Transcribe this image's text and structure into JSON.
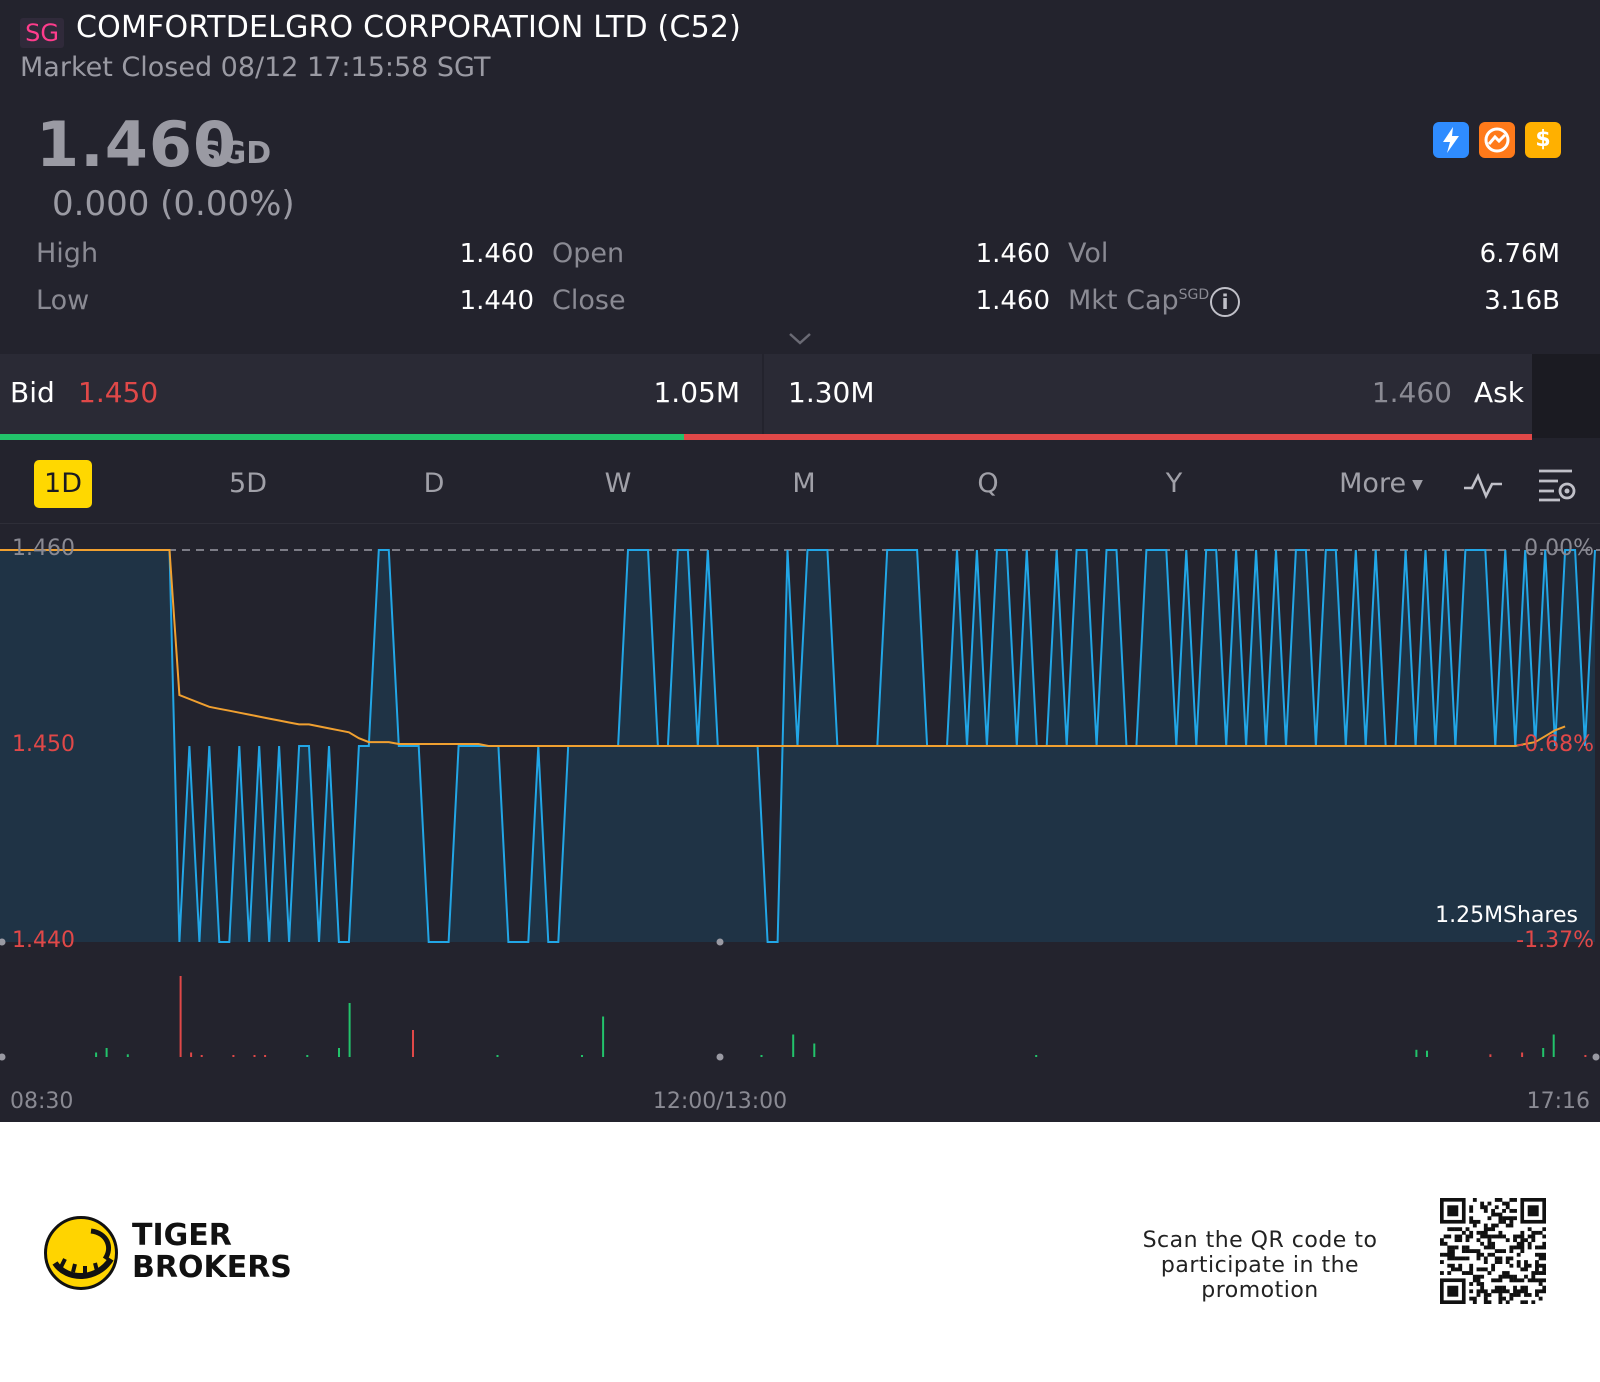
{
  "header": {
    "market_tag": "SG",
    "title": "COMFORTDELGRO CORPORATION LTD (C52)",
    "status": "Market Closed 08/12 17:15:58 SGT"
  },
  "quote": {
    "price": "1.460",
    "currency": "SGD",
    "change": "0.000 (0.00%)",
    "badges": [
      {
        "name": "lightning-icon",
        "color": "#2f8cff"
      },
      {
        "name": "option-chain-icon",
        "color": "#ff7a1a"
      },
      {
        "name": "dollar-icon",
        "color": "#ffb000",
        "glyph": "$"
      }
    ]
  },
  "stats": {
    "high_label": "High",
    "high_value": "1.460",
    "low_label": "Low",
    "low_value": "1.440",
    "open_label": "Open",
    "open_value": "1.460",
    "close_label": "Close",
    "close_value": "1.460",
    "vol_label": "Vol",
    "vol_value": "6.76M",
    "mktcap_label": "Mkt Cap",
    "mktcap_unit": "SGD",
    "mktcap_value": "3.16B"
  },
  "orderbook": {
    "bid_label": "Bid",
    "bid_price": "1.450",
    "bid_size": "1.05M",
    "ask_size": "1.30M",
    "ask_price": "1.460",
    "ask_label": "Ask",
    "bid_ratio": 0.4465
  },
  "tabs": [
    {
      "label": "1D",
      "active": true
    },
    {
      "label": "5D"
    },
    {
      "label": "D"
    },
    {
      "label": "W"
    },
    {
      "label": "M"
    },
    {
      "label": "Q"
    },
    {
      "label": "Y"
    },
    {
      "label": "More"
    }
  ],
  "chart_data": {
    "type": "line",
    "title": "",
    "y_ticks_left": [
      "1.460",
      "1.450",
      "1.440"
    ],
    "y_ticks_right": [
      "0.00%",
      "-0.68%",
      "-1.37%"
    ],
    "x_ticks": [
      "08:30",
      "12:00/13:00",
      "17:16"
    ],
    "ylim": [
      1.44,
      1.46
    ],
    "prev_close": 1.46,
    "volume_label": "1.25MShares",
    "colors": {
      "price": "#22a6e6",
      "avg": "#f0a030",
      "up": "#22c36a",
      "down": "#e04848"
    },
    "series": [
      {
        "values": [
          1.46,
          1.46,
          1.46,
          1.46,
          1.46,
          1.46,
          1.46,
          1.46,
          1.46,
          1.46,
          1.46,
          1.46,
          1.46,
          1.46,
          1.46,
          1.46,
          1.46,
          1.46,
          1.44,
          1.45,
          1.44,
          1.45,
          1.44,
          1.44,
          1.45,
          1.44,
          1.45,
          1.44,
          1.45,
          1.44,
          1.45,
          1.45,
          1.44,
          1.45,
          1.44,
          1.44,
          1.45,
          1.45,
          1.46,
          1.46,
          1.45,
          1.45,
          1.45,
          1.44,
          1.44,
          1.44,
          1.45,
          1.45,
          1.45,
          1.45,
          1.45,
          1.44,
          1.44,
          1.44,
          1.45,
          1.44,
          1.44,
          1.45,
          1.45,
          1.45,
          1.45,
          1.45,
          1.45,
          1.46,
          1.46,
          1.46,
          1.45,
          1.45,
          1.46,
          1.46,
          1.45,
          1.46,
          1.45,
          1.45,
          1.45,
          1.45,
          1.45,
          1.44,
          1.44,
          1.46,
          1.45,
          1.46,
          1.46,
          1.46,
          1.45,
          1.45,
          1.45,
          1.45,
          1.45,
          1.46,
          1.46,
          1.46,
          1.46,
          1.45,
          1.45,
          1.45,
          1.46,
          1.45,
          1.46,
          1.45,
          1.46,
          1.46,
          1.45,
          1.46,
          1.45,
          1.45,
          1.46,
          1.45,
          1.46,
          1.46,
          1.45,
          1.46,
          1.46,
          1.45,
          1.45,
          1.46,
          1.46,
          1.46,
          1.45,
          1.46,
          1.45,
          1.46,
          1.46,
          1.45,
          1.46,
          1.45,
          1.46,
          1.45,
          1.46,
          1.45,
          1.46,
          1.46,
          1.45,
          1.46,
          1.46,
          1.45,
          1.46,
          1.45,
          1.46,
          1.45,
          1.45,
          1.46,
          1.45,
          1.46,
          1.45,
          1.46,
          1.45,
          1.46,
          1.46,
          1.46,
          1.45,
          1.46,
          1.45,
          1.46,
          1.45,
          1.46,
          1.45,
          1.46,
          1.46,
          1.45,
          1.46
        ]
      },
      {
        "values": [
          1.46,
          1.46,
          1.46,
          1.46,
          1.46,
          1.46,
          1.46,
          1.46,
          1.46,
          1.46,
          1.46,
          1.46,
          1.46,
          1.46,
          1.46,
          1.46,
          1.46,
          1.46,
          1.4526,
          1.4524,
          1.4522,
          1.452,
          1.4519,
          1.4518,
          1.4517,
          1.4516,
          1.4515,
          1.4514,
          1.4513,
          1.4512,
          1.4511,
          1.4511,
          1.451,
          1.4509,
          1.4508,
          1.4507,
          1.4504,
          1.4502,
          1.4502,
          1.4502,
          1.4501,
          1.4501,
          1.4501,
          1.4501,
          1.4501,
          1.4501,
          1.4501,
          1.4501,
          1.4501,
          1.45,
          1.45,
          1.45,
          1.45,
          1.45,
          1.45,
          1.45,
          1.45,
          1.45,
          1.45,
          1.45,
          1.45,
          1.45,
          1.45,
          1.45,
          1.45,
          1.45,
          1.45,
          1.45,
          1.45,
          1.45,
          1.45,
          1.45,
          1.45,
          1.45,
          1.45,
          1.45,
          1.45,
          1.45,
          1.45,
          1.45,
          1.45,
          1.45,
          1.45,
          1.45,
          1.45,
          1.45,
          1.45,
          1.45,
          1.45,
          1.45,
          1.45,
          1.45,
          1.45,
          1.45,
          1.45,
          1.45,
          1.45,
          1.45,
          1.45,
          1.45,
          1.45,
          1.45,
          1.45,
          1.45,
          1.45,
          1.45,
          1.45,
          1.45,
          1.45,
          1.45,
          1.45,
          1.45,
          1.45,
          1.45,
          1.45,
          1.45,
          1.45,
          1.45,
          1.45,
          1.45,
          1.45,
          1.45,
          1.45,
          1.45,
          1.45,
          1.45,
          1.45,
          1.45,
          1.45,
          1.45,
          1.45,
          1.45,
          1.45,
          1.45,
          1.45,
          1.45,
          1.45,
          1.45,
          1.45,
          1.45,
          1.45,
          1.45,
          1.45,
          1.45,
          1.45,
          1.45,
          1.45,
          1.45,
          1.45,
          1.45,
          1.45,
          1.45,
          1.45,
          1.4501,
          1.4502,
          1.4505,
          1.4508,
          1.451
        ]
      }
    ],
    "volume": [
      0,
      0,
      0,
      0,
      0,
      0,
      0,
      0,
      0,
      0.05,
      0.1,
      0,
      0.03,
      0,
      0,
      0,
      0,
      0.9,
      0.05,
      0.02,
      0,
      0,
      0.02,
      0,
      0.02,
      0.01,
      0,
      0,
      0,
      0.02,
      0,
      0,
      0.1,
      0.6,
      0,
      0,
      0,
      0,
      0,
      0.3,
      0,
      0,
      0,
      0,
      0,
      0,
      0,
      0.02,
      0,
      0,
      0,
      0,
      0,
      0,
      0,
      0.02,
      0,
      0.45,
      0,
      0,
      0,
      0,
      0,
      0,
      0,
      0,
      0,
      0,
      0,
      0,
      0,
      0,
      0.02,
      0,
      0,
      0.25,
      0,
      0.15,
      0,
      0,
      0,
      0,
      0,
      0,
      0,
      0,
      0,
      0,
      0,
      0,
      0,
      0,
      0,
      0,
      0,
      0,
      0,
      0,
      0.02,
      0,
      0,
      0,
      0,
      0,
      0,
      0,
      0,
      0,
      0,
      0,
      0,
      0,
      0,
      0,
      0,
      0,
      0,
      0,
      0,
      0,
      0,
      0,
      0,
      0,
      0,
      0,
      0,
      0,
      0,
      0,
      0,
      0,
      0,
      0,
      0.08,
      0.07,
      0,
      0,
      0,
      0,
      0,
      0.03,
      0,
      0,
      0.05,
      0,
      0.1,
      0.25,
      0,
      0,
      0.02,
      0
    ],
    "volume_colors": [
      0,
      0,
      0,
      0,
      0,
      0,
      0,
      0,
      0,
      1,
      1,
      0,
      1,
      0,
      0,
      0,
      0,
      2,
      2,
      2,
      0,
      0,
      2,
      0,
      2,
      2,
      0,
      0,
      0,
      1,
      0,
      0,
      1,
      1,
      0,
      0,
      0,
      0,
      0,
      2,
      0,
      0,
      0,
      0,
      0,
      0,
      0,
      1,
      0,
      0,
      0,
      0,
      0,
      0,
      0,
      1,
      0,
      1,
      0,
      0,
      0,
      0,
      0,
      0,
      0,
      0,
      0,
      0,
      0,
      0,
      0,
      0,
      1,
      0,
      0,
      1,
      0,
      1,
      0,
      0,
      0,
      0,
      0,
      0,
      0,
      0,
      0,
      0,
      0,
      0,
      0,
      0,
      0,
      0,
      0,
      0,
      0,
      0,
      1,
      0,
      0,
      0,
      0,
      0,
      0,
      0,
      0,
      0,
      0,
      0,
      0,
      0,
      0,
      0,
      0,
      0,
      0,
      0,
      0,
      0,
      0,
      0,
      0,
      0,
      0,
      0,
      0,
      0,
      0,
      0,
      0,
      0,
      0,
      0,
      1,
      1,
      0,
      0,
      0,
      0,
      0,
      2,
      0,
      0,
      2,
      0,
      1,
      1,
      0,
      0,
      2,
      0
    ]
  },
  "footer": {
    "brand_line1": "TIGER",
    "brand_line2": "BROKERS",
    "promo_text": "Scan the QR code to participate in the promotion"
  }
}
